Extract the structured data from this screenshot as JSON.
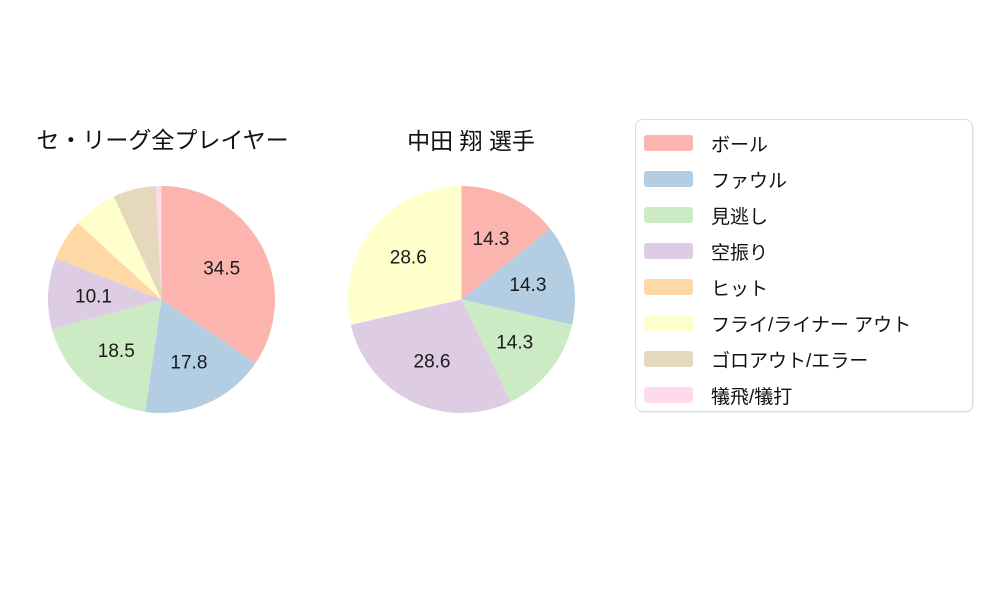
{
  "chart_data": {
    "type": "pie",
    "layout": "two pie charts side by side with shared legend on the right",
    "legend_position": "right",
    "pie_start": "12 o'clock, clockwise",
    "label_distance": 0.6,
    "categories": [
      {
        "id": "ball",
        "label": "ボール",
        "color": "#fbb4ae"
      },
      {
        "id": "foul",
        "label": "ファウル",
        "color": "#b3cde3"
      },
      {
        "id": "called-strike",
        "label": "見逃し",
        "color": "#ccebc5"
      },
      {
        "id": "swinging-strike",
        "label": "空振り",
        "color": "#decbe4"
      },
      {
        "id": "hit",
        "label": "ヒット",
        "color": "#fed9a6"
      },
      {
        "id": "fly-liner-out",
        "label": "フライ/ライナー アウト",
        "color": "#ffffcc"
      },
      {
        "id": "ground-out-error",
        "label": "ゴロアウト/エラー",
        "color": "#e5d8bd"
      },
      {
        "id": "sacrifice",
        "label": "犠飛/犠打",
        "color": "#fddaec"
      }
    ],
    "charts": [
      {
        "title": "セ・リーグ全プレイヤー",
        "note": "slices below ~10% have no value label; their values are estimated from slice angles",
        "slices": [
          {
            "category": "ボール",
            "color": "#fbb4ae",
            "value": 34.5,
            "label": "34.5"
          },
          {
            "category": "ファウル",
            "color": "#b3cde3",
            "value": 17.8,
            "label": "17.8"
          },
          {
            "category": "見逃し",
            "color": "#ccebc5",
            "value": 18.5,
            "label": "18.5"
          },
          {
            "category": "空振り",
            "color": "#decbe4",
            "value": 10.1,
            "label": "10.1"
          },
          {
            "category": "ヒット",
            "color": "#fed9a6",
            "value": 5.9,
            "label": ""
          },
          {
            "category": "フライ/ライナー アウト",
            "color": "#ffffcc",
            "value": 6.3,
            "label": ""
          },
          {
            "category": "ゴロアウト/エラー",
            "color": "#e5d8bd",
            "value": 6.1,
            "label": ""
          },
          {
            "category": "犠飛/犠打",
            "color": "#fddaec",
            "value": 0.8,
            "label": ""
          }
        ]
      },
      {
        "title": "中田 翔 選手",
        "slices": [
          {
            "category": "ボール",
            "color": "#fbb4ae",
            "value": 14.3,
            "label": "14.3"
          },
          {
            "category": "ファウル",
            "color": "#b3cde3",
            "value": 14.3,
            "label": "14.3"
          },
          {
            "category": "見逃し",
            "color": "#ccebc5",
            "value": 14.3,
            "label": "14.3"
          },
          {
            "category": "空振り",
            "color": "#decbe4",
            "value": 28.6,
            "label": "28.6"
          },
          {
            "category": "フライ/ライナー アウト",
            "color": "#ffffcc",
            "value": 28.6,
            "label": "28.6"
          }
        ]
      }
    ]
  }
}
